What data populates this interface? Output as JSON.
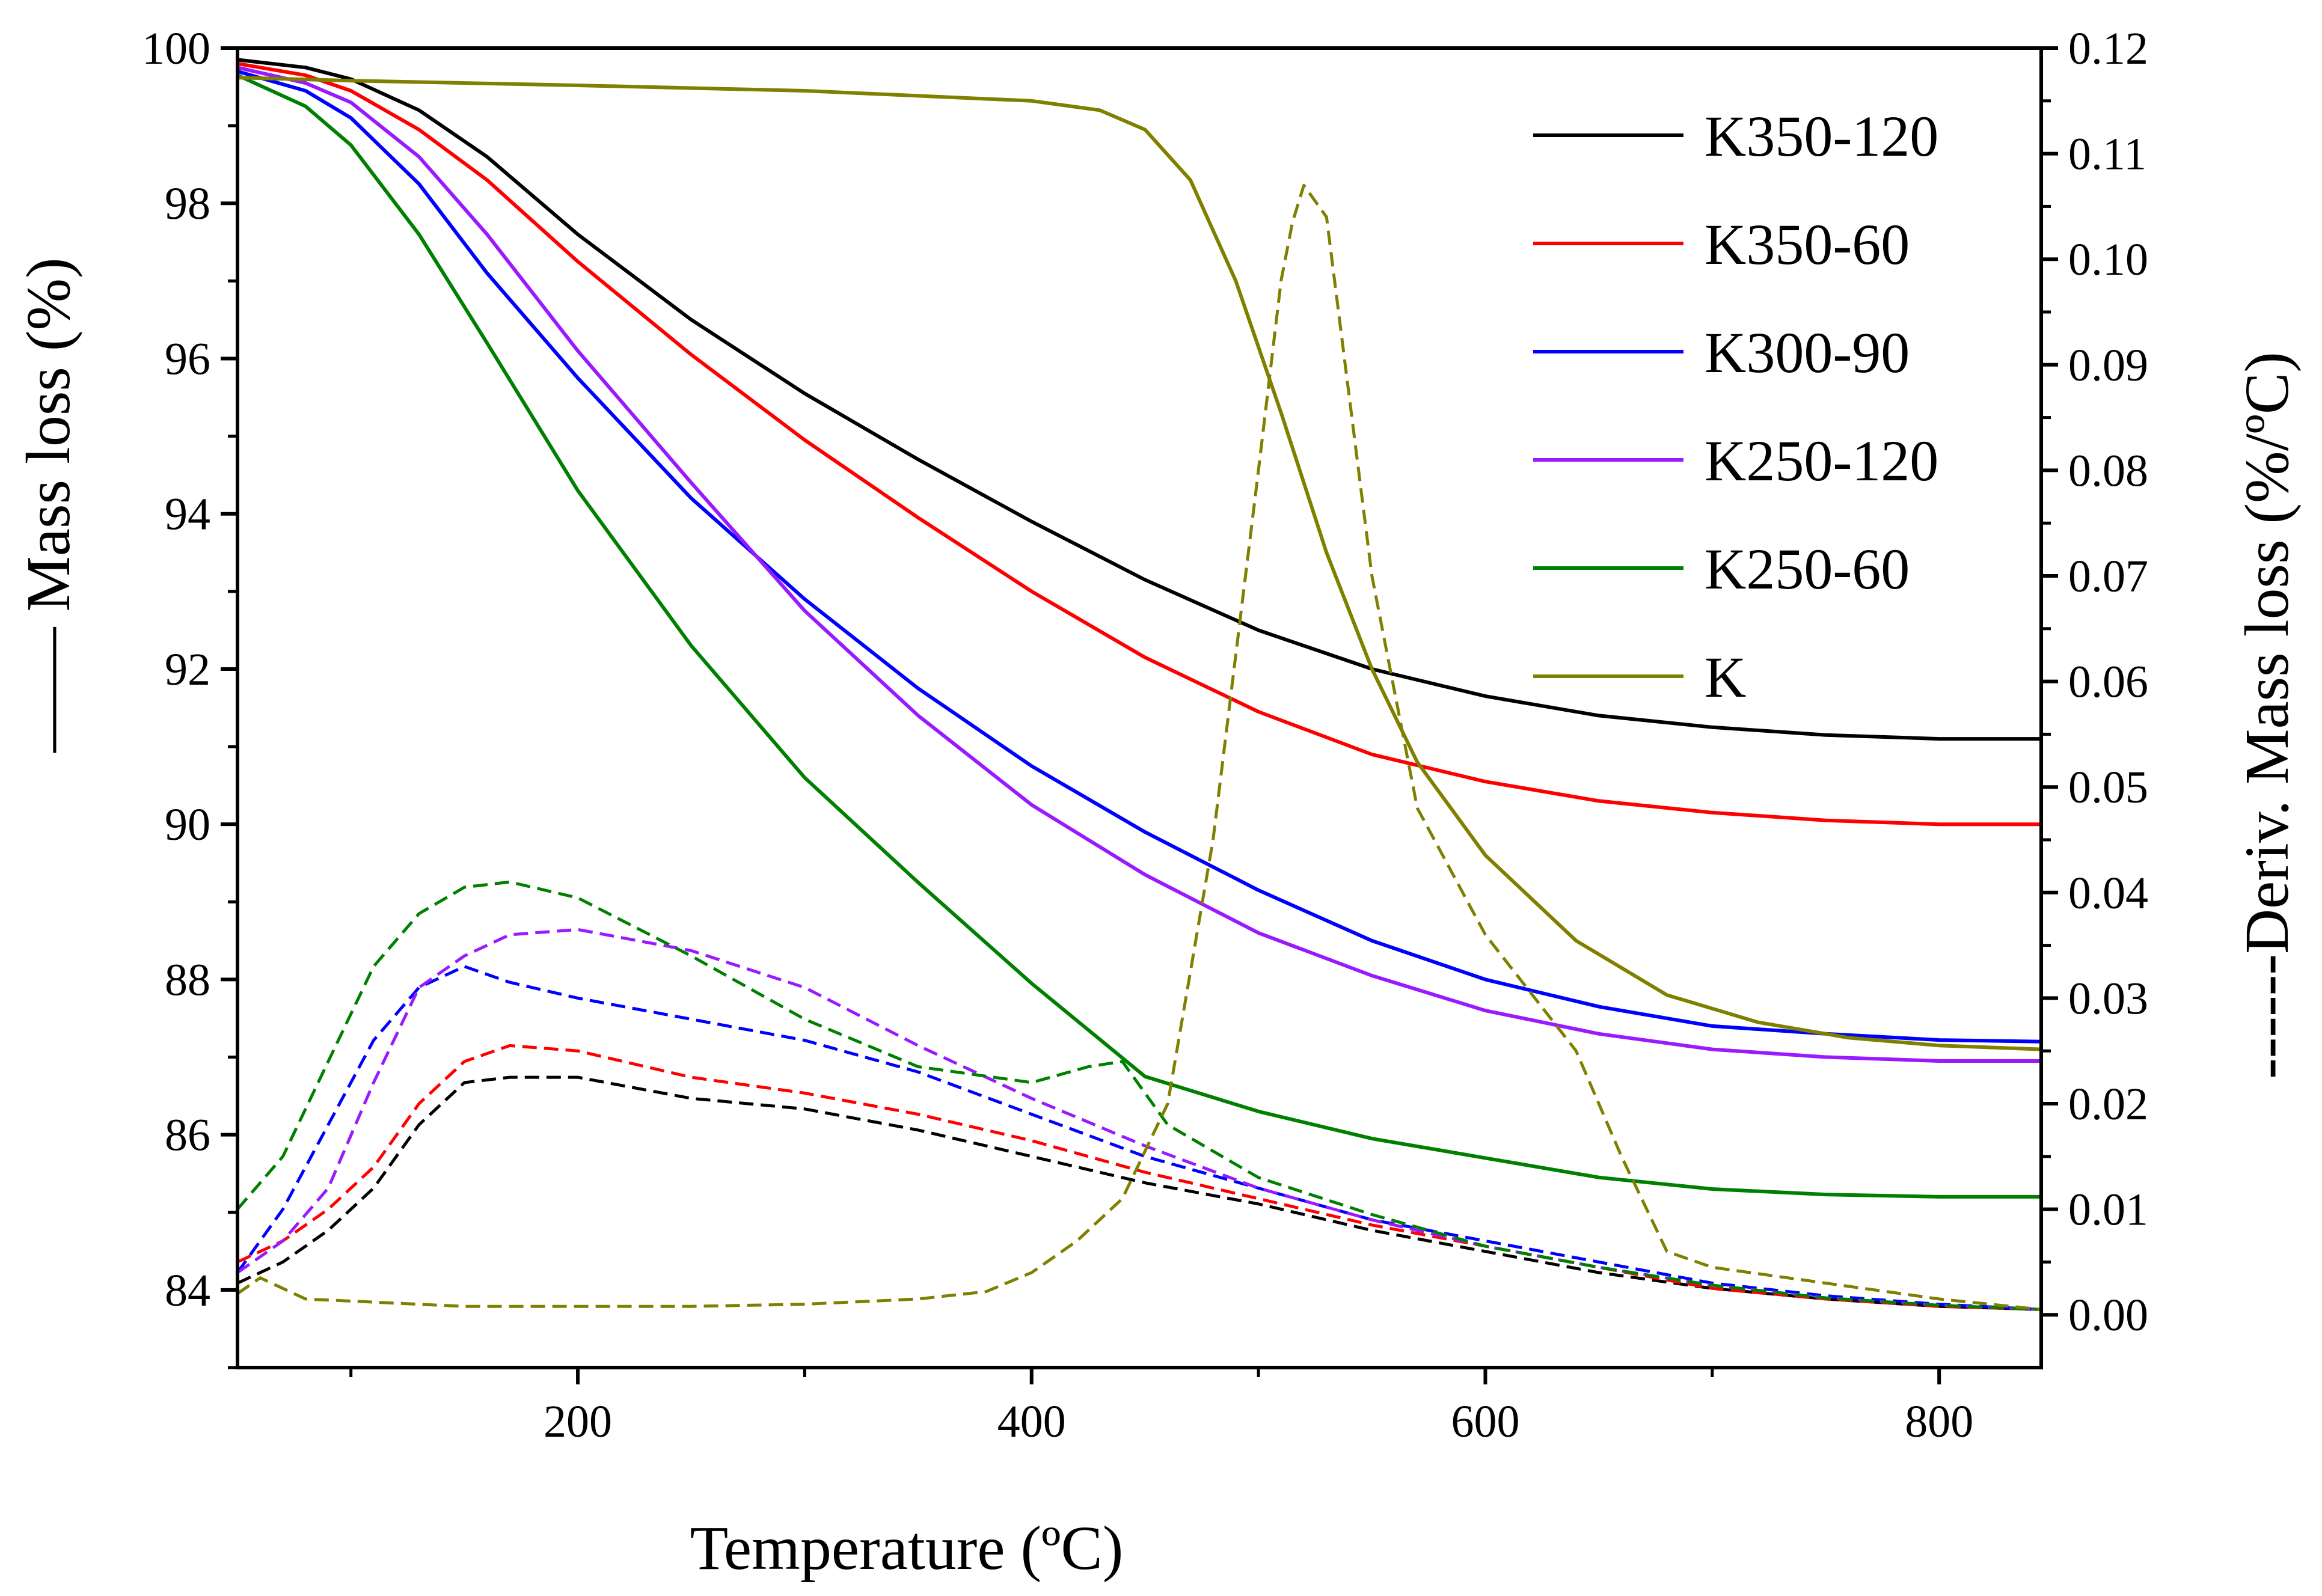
{
  "chart_data": {
    "type": "line",
    "title": "",
    "xlabel": "Temperature (ºC)",
    "ylabel_left": "—— Mass loss (%)",
    "ylabel_right": "------Deriv. Mass loss (%/ºC)",
    "xlim": [
      50,
      845
    ],
    "ylim_left": [
      83,
      100
    ],
    "ylim_right": [
      -0.005,
      0.12
    ],
    "x_ticks": [
      {
        "value": 200,
        "label": "200"
      },
      {
        "value": 400,
        "label": "400"
      },
      {
        "value": 600,
        "label": "600"
      },
      {
        "value": 800,
        "label": "800"
      }
    ],
    "y_left_ticks": [
      {
        "value": 84,
        "label": "84"
      },
      {
        "value": 86,
        "label": "86"
      },
      {
        "value": 88,
        "label": "88"
      },
      {
        "value": 90,
        "label": "90"
      },
      {
        "value": 92,
        "label": "92"
      },
      {
        "value": 94,
        "label": "94"
      },
      {
        "value": 96,
        "label": "96"
      },
      {
        "value": 98,
        "label": "98"
      },
      {
        "value": 100,
        "label": "100"
      }
    ],
    "y_right_ticks": [
      {
        "value": 0.0,
        "label": "0.00"
      },
      {
        "value": 0.01,
        "label": "0.01"
      },
      {
        "value": 0.02,
        "label": "0.02"
      },
      {
        "value": 0.03,
        "label": "0.03"
      },
      {
        "value": 0.04,
        "label": "0.04"
      },
      {
        "value": 0.05,
        "label": "0.05"
      },
      {
        "value": 0.06,
        "label": "0.06"
      },
      {
        "value": 0.07,
        "label": "0.07"
      },
      {
        "value": 0.08,
        "label": "0.08"
      },
      {
        "value": 0.09,
        "label": "0.09"
      },
      {
        "value": 0.1,
        "label": "0.10"
      },
      {
        "value": 0.11,
        "label": "0.11"
      },
      {
        "value": 0.12,
        "label": "0.12"
      }
    ],
    "legend_position": "top-right",
    "series": [
      {
        "name": "K350-120",
        "color": "#000000",
        "mass_loss": {
          "x": [
            50,
            80,
            100,
            130,
            160,
            200,
            250,
            300,
            350,
            400,
            450,
            500,
            550,
            600,
            650,
            700,
            750,
            800,
            845
          ],
          "y": [
            99.85,
            99.75,
            99.6,
            99.2,
            98.6,
            97.6,
            96.5,
            95.55,
            94.7,
            93.9,
            93.15,
            92.5,
            92.0,
            91.65,
            91.4,
            91.25,
            91.15,
            91.1,
            91.1
          ]
        },
        "derivative": {
          "x": [
            50,
            70,
            90,
            110,
            130,
            150,
            170,
            200,
            250,
            300,
            350,
            400,
            450,
            500,
            550,
            600,
            650,
            700,
            750,
            800,
            845
          ],
          "y": [
            0.003,
            0.005,
            0.008,
            0.012,
            0.018,
            0.022,
            0.0225,
            0.0225,
            0.0205,
            0.0195,
            0.0175,
            0.015,
            0.0125,
            0.0105,
            0.008,
            0.006,
            0.004,
            0.0025,
            0.0015,
            0.0008,
            0.0005
          ]
        }
      },
      {
        "name": "K350-60",
        "color": "#ff0000",
        "mass_loss": {
          "x": [
            50,
            80,
            100,
            130,
            160,
            200,
            250,
            300,
            350,
            400,
            450,
            500,
            550,
            600,
            650,
            700,
            750,
            800,
            845
          ],
          "y": [
            99.8,
            99.65,
            99.45,
            98.95,
            98.3,
            97.25,
            96.05,
            94.95,
            93.95,
            93.0,
            92.15,
            91.45,
            90.9,
            90.55,
            90.3,
            90.15,
            90.05,
            90.0,
            90.0
          ]
        },
        "derivative": {
          "x": [
            50,
            70,
            90,
            110,
            130,
            150,
            170,
            200,
            250,
            300,
            350,
            400,
            450,
            500,
            550,
            600,
            650,
            700,
            750,
            800,
            845
          ],
          "y": [
            0.005,
            0.007,
            0.01,
            0.014,
            0.02,
            0.024,
            0.0255,
            0.025,
            0.0225,
            0.021,
            0.019,
            0.0165,
            0.0135,
            0.011,
            0.0085,
            0.0065,
            0.0045,
            0.0025,
            0.0015,
            0.0008,
            0.0005
          ]
        }
      },
      {
        "name": "K300-90",
        "color": "#0000ff",
        "mass_loss": {
          "x": [
            50,
            80,
            100,
            130,
            160,
            200,
            250,
            300,
            350,
            400,
            450,
            500,
            550,
            600,
            650,
            700,
            750,
            800,
            845
          ],
          "y": [
            99.7,
            99.45,
            99.1,
            98.25,
            97.1,
            95.75,
            94.2,
            92.9,
            91.75,
            90.75,
            89.9,
            89.15,
            88.5,
            88.0,
            87.65,
            87.4,
            87.3,
            87.22,
            87.2
          ]
        },
        "derivative": {
          "x": [
            50,
            70,
            90,
            110,
            130,
            150,
            170,
            200,
            250,
            300,
            350,
            400,
            450,
            500,
            550,
            600,
            650,
            700,
            750,
            800,
            845
          ],
          "y": [
            0.004,
            0.01,
            0.018,
            0.026,
            0.031,
            0.033,
            0.0315,
            0.03,
            0.028,
            0.026,
            0.023,
            0.019,
            0.015,
            0.012,
            0.009,
            0.007,
            0.005,
            0.003,
            0.0018,
            0.001,
            0.0005
          ]
        }
      },
      {
        "name": "K250-120",
        "color": "#9a1aff",
        "mass_loss": {
          "x": [
            50,
            80,
            100,
            130,
            160,
            200,
            250,
            300,
            350,
            400,
            450,
            500,
            550,
            600,
            650,
            700,
            750,
            800,
            845
          ],
          "y": [
            99.75,
            99.55,
            99.3,
            98.6,
            97.6,
            96.1,
            94.4,
            92.75,
            91.4,
            90.25,
            89.35,
            88.6,
            88.05,
            87.6,
            87.3,
            87.1,
            87.0,
            86.95,
            86.95
          ]
        },
        "derivative": {
          "x": [
            50,
            70,
            90,
            110,
            130,
            150,
            170,
            200,
            250,
            300,
            350,
            400,
            450,
            500,
            550,
            600,
            650,
            700,
            750,
            800,
            845
          ],
          "y": [
            0.004,
            0.007,
            0.012,
            0.022,
            0.031,
            0.034,
            0.036,
            0.0365,
            0.0345,
            0.031,
            0.0255,
            0.0205,
            0.016,
            0.012,
            0.009,
            0.0065,
            0.0045,
            0.0028,
            0.0016,
            0.0009,
            0.0005
          ]
        }
      },
      {
        "name": "K250-60",
        "color": "#008000",
        "mass_loss": {
          "x": [
            50,
            80,
            100,
            130,
            160,
            200,
            250,
            300,
            350,
            400,
            450,
            500,
            550,
            600,
            650,
            700,
            750,
            800,
            845
          ],
          "y": [
            99.65,
            99.25,
            98.75,
            97.6,
            96.2,
            94.3,
            92.3,
            90.6,
            89.25,
            87.95,
            86.75,
            86.3,
            85.95,
            85.7,
            85.45,
            85.3,
            85.23,
            85.2,
            85.2
          ]
        },
        "derivative": {
          "x": [
            50,
            70,
            90,
            110,
            130,
            150,
            170,
            200,
            250,
            300,
            350,
            400,
            425,
            440,
            460,
            500,
            550,
            600,
            650,
            700,
            750,
            800,
            845
          ],
          "y": [
            0.01,
            0.015,
            0.024,
            0.033,
            0.038,
            0.0405,
            0.041,
            0.0395,
            0.034,
            0.028,
            0.0235,
            0.022,
            0.0235,
            0.024,
            0.018,
            0.013,
            0.0095,
            0.0065,
            0.0045,
            0.0028,
            0.0016,
            0.0009,
            0.0005
          ]
        }
      },
      {
        "name": "K",
        "color": "#808000",
        "mass_loss": {
          "x": [
            50,
            100,
            200,
            300,
            400,
            430,
            450,
            470,
            490,
            510,
            530,
            550,
            570,
            600,
            640,
            680,
            720,
            760,
            800,
            845
          ],
          "y": [
            99.62,
            99.58,
            99.52,
            99.45,
            99.32,
            99.2,
            98.95,
            98.3,
            97.0,
            95.3,
            93.5,
            92.0,
            90.8,
            89.6,
            88.5,
            87.8,
            87.45,
            87.25,
            87.15,
            87.1
          ]
        },
        "derivative": {
          "x": [
            50,
            60,
            80,
            100,
            150,
            200,
            250,
            300,
            350,
            380,
            400,
            420,
            440,
            460,
            480,
            500,
            510,
            515,
            520,
            530,
            550,
            570,
            600,
            640,
            660,
            680,
            700,
            750,
            800,
            845
          ],
          "y": [
            0.002,
            0.0035,
            0.0015,
            0.0013,
            0.0008,
            0.0008,
            0.0008,
            0.001,
            0.0015,
            0.0022,
            0.004,
            0.007,
            0.011,
            0.02,
            0.045,
            0.08,
            0.098,
            0.1035,
            0.107,
            0.104,
            0.07,
            0.048,
            0.036,
            0.025,
            0.015,
            0.006,
            0.0045,
            0.003,
            0.0015,
            0.0005
          ]
        }
      }
    ]
  }
}
